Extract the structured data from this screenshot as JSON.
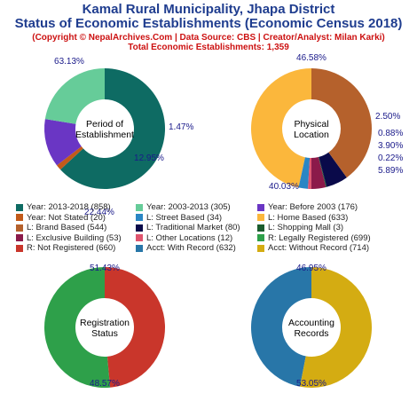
{
  "header": {
    "title_line1": "Kamal Rural Municipality, Jhapa District",
    "title_line2": "Status of Economic Establishments (Economic Census 2018)",
    "copyright": "(Copyright © NepalArchives.Com | Data Source: CBS | Creator/Analyst: Milan Karki)",
    "total": "Total Economic Establishments: 1,359"
  },
  "chart_data": [
    {
      "type": "pie",
      "title": "Period of Establishment",
      "center_lines": [
        "Period of",
        "Establishment"
      ],
      "slices": [
        {
          "label": "Year: 2013-2018",
          "value": 858,
          "pct": "63.13%",
          "color": "#0e6b63"
        },
        {
          "label": "Year: Not Stated",
          "value": 20,
          "pct": "1.47%",
          "color": "#c25a1a"
        },
        {
          "label": "Year: Before 2003",
          "value": 176,
          "pct": "12.95%",
          "color": "#6a36c4"
        },
        {
          "label": "Year: 2003-2013",
          "value": 305,
          "pct": "22.44%",
          "color": "#66cc99"
        }
      ]
    },
    {
      "type": "pie",
      "title": "Physical Location",
      "center_lines": [
        "Physical",
        "Location"
      ],
      "slices": [
        {
          "label": "L: Home Based",
          "value": 633,
          "pct": "46.58%",
          "color": "#fbb73c"
        },
        {
          "label": "L: Street Based",
          "value": 34,
          "pct": "2.50%",
          "color": "#2a86c4"
        },
        {
          "label": "L: Other Locations",
          "value": 12,
          "pct": "0.88%",
          "color": "#e0546e"
        },
        {
          "label": "L: Exclusive Building",
          "value": 53,
          "pct": "3.90%",
          "color": "#8b1a4a"
        },
        {
          "label": "L: Shopping Mall",
          "value": 3,
          "pct": "0.22%",
          "color": "#1b5c2e"
        },
        {
          "label": "L: Traditional Market",
          "value": 80,
          "pct": "5.89%",
          "color": "#0a0a4a"
        },
        {
          "label": "L: Brand Based",
          "value": 544,
          "pct": "40.03%",
          "color": "#b5612c"
        }
      ]
    },
    {
      "type": "pie",
      "title": "Registration Status",
      "center_lines": [
        "Registration",
        "Status"
      ],
      "slices": [
        {
          "label": "R: Legally Registered",
          "value": 699,
          "pct": "51.43%",
          "color": "#2ea04a"
        },
        {
          "label": "R: Not Registered",
          "value": 660,
          "pct": "48.57%",
          "color": "#c9362b"
        }
      ]
    },
    {
      "type": "pie",
      "title": "Accounting Records",
      "center_lines": [
        "Accounting",
        "Records"
      ],
      "slices": [
        {
          "label": "Acct: With Record",
          "value": 632,
          "pct": "46.95%",
          "color": "#2876a8"
        },
        {
          "label": "Acct: Without Record",
          "value": 714,
          "pct": "53.05%",
          "color": "#d4ac12"
        }
      ]
    }
  ],
  "legend": [
    {
      "text": "Year: 2013-2018 (858)",
      "color": "#0e6b63"
    },
    {
      "text": "Year: 2003-2013 (305)",
      "color": "#66cc99"
    },
    {
      "text": "Year: Before 2003 (176)",
      "color": "#6a36c4"
    },
    {
      "text": "Year: Not Stated (20)",
      "color": "#c25a1a"
    },
    {
      "text": "L: Street Based (34)",
      "color": "#2a86c4"
    },
    {
      "text": "L: Home Based (633)",
      "color": "#fbb73c"
    },
    {
      "text": "L: Brand Based (544)",
      "color": "#b5612c"
    },
    {
      "text": "L: Traditional Market (80)",
      "color": "#0a0a4a"
    },
    {
      "text": "L: Shopping Mall (3)",
      "color": "#1b5c2e"
    },
    {
      "text": "L: Exclusive Building (53)",
      "color": "#8b1a4a"
    },
    {
      "text": "L: Other Locations (12)",
      "color": "#e0546e"
    },
    {
      "text": "R: Legally Registered (699)",
      "color": "#2ea04a"
    },
    {
      "text": "R: Not Registered (660)",
      "color": "#c9362b"
    },
    {
      "text": "Acct: With Record (632)",
      "color": "#2876a8"
    },
    {
      "text": "Acct: Without Record (714)",
      "color": "#d4ac12"
    }
  ]
}
